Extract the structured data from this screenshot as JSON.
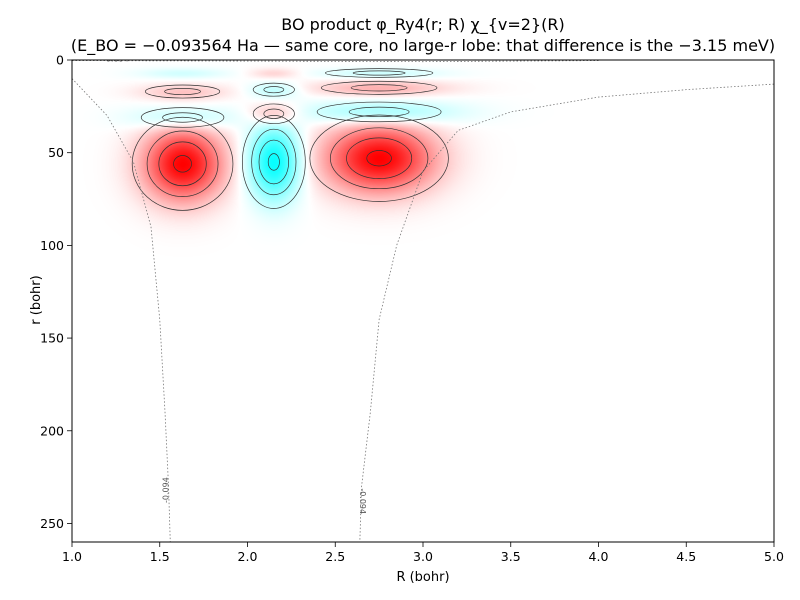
{
  "chart_data": {
    "type": "heatmap",
    "title_line1": "BO product φ_Ry4(r; R) χ_{v=2}(R)",
    "title_line2": "(E_BO = −0.093564 Ha — same core, no large-r lobe: that difference is the −3.15 meV)",
    "xlabel": "R (bohr)",
    "ylabel": "r (bohr)",
    "xlim": [
      1.0,
      5.0
    ],
    "ylim": [
      260,
      0
    ],
    "x_ticks": [
      1.0,
      1.5,
      2.0,
      2.5,
      3.0,
      3.5,
      4.0,
      4.5,
      5.0
    ],
    "x_tick_labels": [
      "1.0",
      "1.5",
      "2.0",
      "2.5",
      "3.0",
      "3.5",
      "4.0",
      "4.5",
      "5.0"
    ],
    "y_ticks": [
      0,
      50,
      100,
      150,
      200,
      250
    ],
    "y_tick_labels": [
      "0",
      "50",
      "100",
      "150",
      "200",
      "250"
    ],
    "colormap": {
      "positive": "#ff0000",
      "negative": "#00ffff",
      "zero": "#ffffff"
    },
    "lobes": [
      {
        "R": 1.63,
        "r": 56,
        "sR": 0.16,
        "sr": 14,
        "amp": 1.0
      },
      {
        "R": 2.15,
        "r": 55,
        "sR": 0.1,
        "sr": 14,
        "amp": -1.0
      },
      {
        "R": 2.75,
        "r": 53,
        "sR": 0.22,
        "sr": 13,
        "amp": 1.0
      },
      {
        "R": 1.63,
        "r": 31,
        "sR": 0.2,
        "sr": 4.5,
        "amp": -0.35
      },
      {
        "R": 2.15,
        "r": 29,
        "sR": 0.1,
        "sr": 4.5,
        "amp": 0.4
      },
      {
        "R": 2.75,
        "r": 28,
        "sR": 0.3,
        "sr": 4.5,
        "amp": -0.45
      },
      {
        "R": 1.63,
        "r": 17,
        "sR": 0.18,
        "sr": 3,
        "amp": 0.22
      },
      {
        "R": 2.15,
        "r": 16,
        "sR": 0.1,
        "sr": 3,
        "amp": -0.25
      },
      {
        "R": 2.75,
        "r": 15,
        "sR": 0.28,
        "sr": 3,
        "amp": 0.3
      },
      {
        "R": 1.63,
        "r": 7,
        "sR": 0.18,
        "sr": 2,
        "amp": -0.18
      },
      {
        "R": 2.15,
        "r": 7,
        "sR": 0.1,
        "sr": 2,
        "amp": 0.18
      },
      {
        "R": 2.75,
        "r": 7,
        "sR": 0.26,
        "sr": 2,
        "amp": -0.2
      }
    ],
    "energy_contour_label": "-0.094",
    "energy_contours": [
      {
        "name": "left-branch",
        "points": [
          [
            1.0,
            10
          ],
          [
            1.2,
            30
          ],
          [
            1.35,
            55
          ],
          [
            1.45,
            90
          ],
          [
            1.5,
            140
          ],
          [
            1.53,
            190
          ],
          [
            1.55,
            230
          ],
          [
            1.56,
            260
          ]
        ]
      },
      {
        "name": "right-branch",
        "points": [
          [
            5.0,
            13
          ],
          [
            4.5,
            16
          ],
          [
            4.0,
            20
          ],
          [
            3.5,
            28
          ],
          [
            3.2,
            38
          ],
          [
            3.0,
            60
          ],
          [
            2.85,
            100
          ],
          [
            2.75,
            140
          ],
          [
            2.7,
            190
          ],
          [
            2.65,
            230
          ],
          [
            2.64,
            260
          ]
        ]
      },
      {
        "name": "top-branch",
        "points": [
          [
            1.0,
            0.3
          ],
          [
            2.0,
            0.6
          ],
          [
            3.0,
            0.9
          ],
          [
            4.0,
            0.3
          ]
        ]
      }
    ]
  }
}
